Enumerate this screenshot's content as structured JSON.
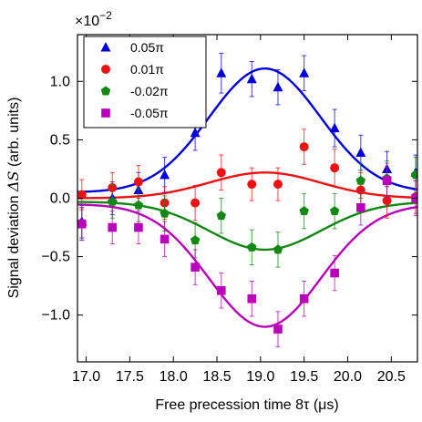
{
  "chart_data": {
    "type": "scatter",
    "xlabel": "Free precession time 8τ (μs)",
    "ylabel_prefix": "Signal deviation ",
    "ylabel_math": "ΔS",
    "ylabel_suffix": " (arb. units)",
    "y_multiplier_label": "×10",
    "y_multiplier_exp": "−2",
    "xlim": [
      16.9,
      20.8
    ],
    "ylim": [
      -1.4,
      1.4
    ],
    "xticks": [
      17.0,
      17.5,
      18.0,
      18.5,
      19.0,
      19.5,
      20.0,
      20.5
    ],
    "xtick_labels": [
      "17.0",
      "17.5",
      "18.0",
      "18.5",
      "19.0",
      "19.5",
      "20.0",
      "20.5"
    ],
    "yticks": [
      -1.0,
      -0.5,
      0.0,
      0.5,
      1.0
    ],
    "ytick_labels": [
      "−1.0",
      "−0.5",
      "0.0",
      "0.5",
      "1.0"
    ],
    "grid": false,
    "legend_position": "top-left",
    "series": [
      {
        "name": "0.05π",
        "color": "#0000dd",
        "marker": "triangle",
        "x": [
          16.95,
          17.3,
          17.6,
          17.9,
          18.25,
          18.55,
          18.9,
          19.2,
          19.5,
          19.85,
          20.15,
          20.45,
          20.78
        ],
        "y": [
          -0.2,
          0.0,
          0.07,
          0.2,
          0.56,
          1.07,
          1.02,
          0.95,
          1.07,
          0.6,
          0.39,
          0.25,
          0.22
        ],
        "err": [
          0.14,
          0.14,
          0.15,
          0.15,
          0.15,
          0.17,
          0.15,
          0.15,
          0.15,
          0.16,
          0.15,
          0.15,
          0.15
        ],
        "fit": {
          "baseline": 0.05,
          "amplitude": 1.06,
          "center": 19.05,
          "sigma": 0.64
        }
      },
      {
        "name": "0.01π",
        "color": "#ee1111",
        "marker": "circle",
        "x": [
          16.95,
          17.3,
          17.6,
          17.9,
          18.25,
          18.55,
          18.9,
          19.2,
          19.5,
          19.85,
          20.15,
          20.45,
          20.78
        ],
        "y": [
          0.03,
          0.09,
          0.14,
          -0.04,
          -0.04,
          0.22,
          0.12,
          0.12,
          0.44,
          0.26,
          0.07,
          -0.02,
          0.01
        ],
        "err": [
          0.13,
          0.13,
          0.14,
          0.14,
          0.15,
          0.15,
          0.14,
          0.14,
          0.15,
          0.16,
          0.15,
          0.15,
          0.14
        ],
        "fit": {
          "baseline": 0.0,
          "amplitude": 0.22,
          "center": 19.05,
          "sigma": 0.64
        }
      },
      {
        "name": "-0.02π",
        "color": "#118811",
        "marker": "pentagon",
        "x": [
          16.95,
          17.3,
          17.6,
          17.9,
          18.25,
          18.55,
          18.9,
          19.2,
          19.5,
          19.85,
          20.15,
          20.45,
          20.78
        ],
        "y": [
          -0.22,
          -0.03,
          -0.06,
          -0.13,
          -0.36,
          -0.15,
          -0.42,
          -0.44,
          -0.11,
          -0.11,
          0.15,
          0.17,
          0.2
        ],
        "err": [
          0.14,
          0.14,
          0.14,
          0.15,
          0.15,
          0.15,
          0.15,
          0.15,
          0.15,
          0.15,
          0.15,
          0.15,
          0.15
        ],
        "fit": {
          "baseline": -0.03,
          "amplitude": -0.41,
          "center": 19.05,
          "sigma": 0.64
        }
      },
      {
        "name": "-0.05π",
        "color": "#bb00bb",
        "marker": "square",
        "x": [
          16.95,
          17.3,
          17.6,
          17.9,
          18.25,
          18.55,
          18.9,
          19.2,
          19.5,
          19.85,
          20.15,
          20.45,
          20.78
        ],
        "y": [
          -0.22,
          -0.25,
          -0.25,
          -0.35,
          -0.59,
          -0.79,
          -0.86,
          -1.12,
          -0.86,
          -0.64,
          -0.08,
          0.15,
          0.0
        ],
        "err": [
          0.14,
          0.14,
          0.14,
          0.15,
          0.15,
          0.15,
          0.15,
          0.15,
          0.15,
          0.15,
          0.15,
          0.15,
          0.15
        ],
        "fit": {
          "baseline": -0.05,
          "amplitude": -1.05,
          "center": 19.05,
          "sigma": 0.64
        }
      }
    ]
  }
}
